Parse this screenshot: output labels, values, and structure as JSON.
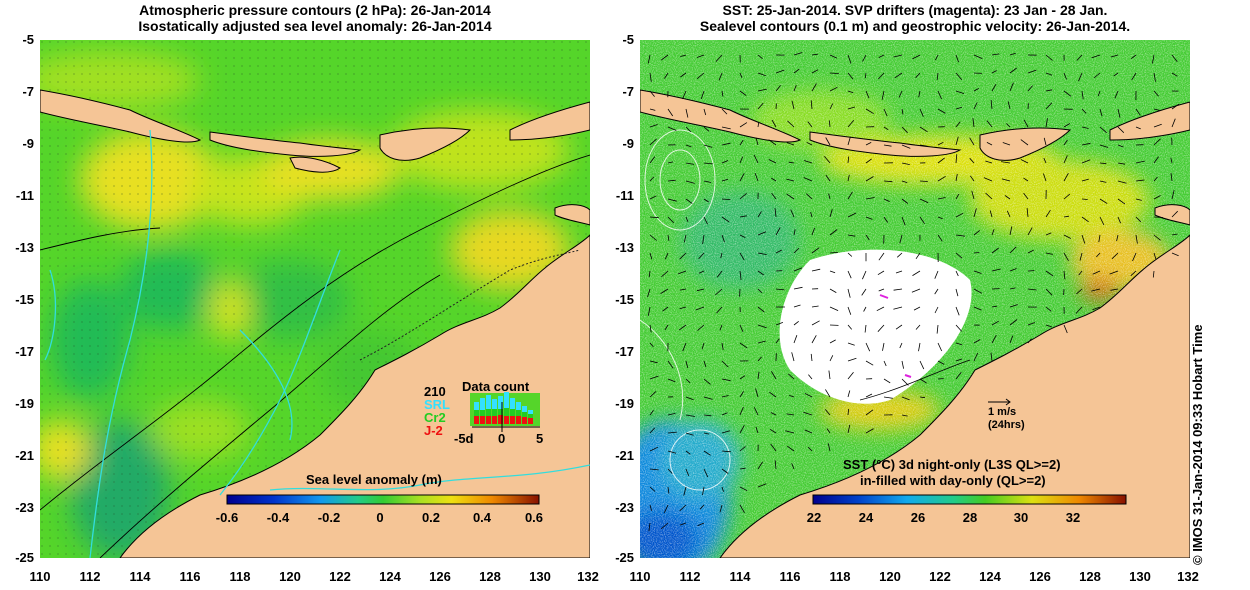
{
  "left_panel": {
    "title_line1": "Atmospheric pressure contours (2 hPa): 26-Jan-2014",
    "title_line2": "Isostatically adjusted sea level anomaly: 26-Jan-2014",
    "colorbar_title": "Sea level anomaly (m)",
    "colorbar_ticks": [
      "-0.6",
      "-0.4",
      "-0.2",
      "0",
      "0.2",
      "0.4",
      "0.6"
    ],
    "data_count": {
      "title": "Data count",
      "total": "210",
      "missions": [
        {
          "name": "SRL",
          "color": "#33e0ff"
        },
        {
          "name": "Cr2",
          "color": "#22cc22"
        },
        {
          "name": "J-2",
          "color": "#ee1111"
        }
      ],
      "axis_labels": [
        "-5d",
        "0",
        "5"
      ]
    }
  },
  "right_panel": {
    "title_line1": "SST: 25-Jan-2014. SVP drifters (magenta): 23 Jan - 28 Jan.",
    "title_line2": "Sealevel contours (0.1 m) and geostrophic velocity: 26-Jan-2014.",
    "velocity_scale_label": "1 m/s",
    "velocity_scale_period": "(24hrs)",
    "colorbar_title_line1": "SST (°C)  3d night-only (L3S QL>=2)",
    "colorbar_title_line2": "in-filled with day-only (QL>=2)",
    "colorbar_ticks": [
      "22",
      "24",
      "26",
      "28",
      "30",
      "32"
    ]
  },
  "axes": {
    "x_ticks": [
      "110",
      "112",
      "114",
      "116",
      "118",
      "120",
      "122",
      "124",
      "126",
      "128",
      "130",
      "132"
    ],
    "y_ticks": [
      "-5",
      "-7",
      "-9",
      "-11",
      "-13",
      "-15",
      "-17",
      "-19",
      "-21",
      "-23",
      "-25"
    ]
  },
  "credit": "© IMOS 31-Jan-2014 09:33 Hobart Time",
  "colors": {
    "land": "#f5c596",
    "ocean_green": "#66dd22",
    "ocean_yellow": "#dde811",
    "sst_white": "#ffffff",
    "coast": "#000000",
    "bathymetry": "#33dddd"
  }
}
